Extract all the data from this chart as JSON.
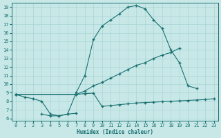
{
  "xlabel": "Humidex (Indice chaleur)",
  "ylabel": "",
  "bg_color": "#c8e8e8",
  "grid_color": "#aad4d4",
  "line_color": "#1a7070",
  "xlim": [
    -0.5,
    23.5
  ],
  "ylim": [
    5.7,
    19.5
  ],
  "xticks": [
    0,
    1,
    2,
    3,
    4,
    5,
    6,
    7,
    8,
    9,
    10,
    11,
    12,
    13,
    14,
    15,
    16,
    17,
    18,
    19,
    20,
    21,
    22,
    23
  ],
  "yticks": [
    6,
    7,
    8,
    9,
    10,
    11,
    12,
    13,
    14,
    15,
    16,
    17,
    18,
    19
  ],
  "curve1_x": [
    0,
    1,
    2,
    3,
    4,
    5,
    6,
    7,
    8,
    9,
    10,
    11,
    12,
    13,
    14,
    15,
    16,
    17,
    18,
    19,
    20,
    21
  ],
  "curve1_y": [
    8.8,
    8.5,
    8.3,
    8.0,
    6.5,
    6.3,
    6.5,
    9.0,
    11.0,
    15.2,
    16.8,
    17.5,
    18.2,
    19.0,
    19.2,
    18.8,
    17.5,
    16.5,
    14.0,
    12.5,
    9.8,
    9.5
  ],
  "curve2_x": [
    0,
    7,
    8,
    9,
    10,
    11,
    12,
    13,
    14,
    15,
    16,
    17,
    18,
    19,
    20,
    21,
    22,
    23
  ],
  "curve2_y": [
    8.8,
    8.8,
    9.2,
    9.8,
    10.2,
    10.7,
    11.2,
    11.7,
    12.2,
    12.5,
    13.0,
    13.4,
    13.7,
    14.2,
    null,
    null,
    null,
    null
  ],
  "curve3_x": [
    0,
    7,
    8,
    9,
    10,
    11,
    12,
    13,
    14,
    15,
    16,
    17,
    18,
    19,
    20,
    21,
    22,
    23
  ],
  "curve3_y": [
    8.8,
    8.8,
    8.9,
    8.95,
    7.4,
    7.5,
    7.6,
    7.7,
    7.8,
    7.85,
    7.9,
    7.95,
    8.0,
    8.05,
    8.1,
    8.15,
    8.2,
    8.3
  ],
  "curve4_x": [
    3,
    4,
    5,
    6,
    7,
    8,
    9,
    10,
    11,
    12,
    13,
    14,
    15,
    16,
    17,
    18,
    19,
    20,
    21,
    22,
    23
  ],
  "curve4_y": [
    6.5,
    6.3,
    6.3,
    6.5,
    6.6,
    null,
    null,
    null,
    null,
    null,
    null,
    null,
    null,
    null,
    null,
    null,
    null,
    null,
    null,
    null,
    null
  ]
}
